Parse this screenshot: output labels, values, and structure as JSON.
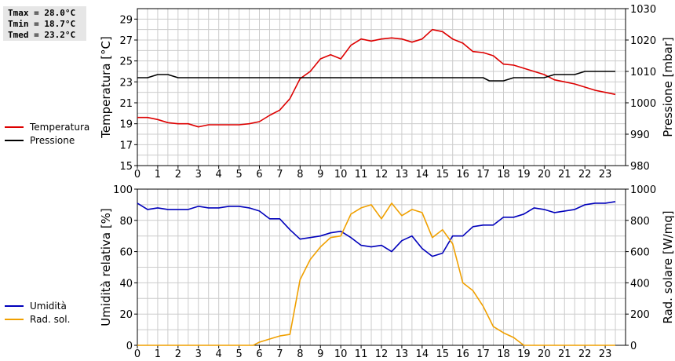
{
  "stats": {
    "tmax": "Tmax = 28.0°C",
    "tmin": "Tmin = 18.7°C",
    "tmed": "Tmed = 23.2°C"
  },
  "colors": {
    "temperature": "#dd0000",
    "pressure": "#000000",
    "humidity": "#0000bb",
    "radiation": "#f0a000",
    "grid": "#cccccc"
  },
  "legend_top": [
    {
      "label": "Temperatura",
      "color": "#dd0000"
    },
    {
      "label": "Pressione",
      "color": "#000000"
    }
  ],
  "legend_bottom": [
    {
      "label": "Umidità",
      "color": "#0000bb"
    },
    {
      "label": "Rad. sol.",
      "color": "#f0a000"
    }
  ],
  "chart_data": [
    {
      "type": "line",
      "ylabel": "Temperatura [°C]",
      "y2label": "Pressione [mbar]",
      "xlim": [
        0,
        24
      ],
      "ylim": [
        15,
        30
      ],
      "y2lim": [
        980,
        1030
      ],
      "xticks": [
        "0",
        "1",
        "2",
        "3",
        "4",
        "5",
        "6",
        "7",
        "8",
        "9",
        "10",
        "11",
        "12",
        "13",
        "14",
        "15",
        "16",
        "17",
        "18",
        "19",
        "20",
        "21",
        "22",
        "23"
      ],
      "yticks": [
        "15",
        "17",
        "19",
        "21",
        "23",
        "25",
        "27",
        "29"
      ],
      "y2ticks": [
        "980",
        "990",
        "1000",
        "1010",
        "1020",
        "1030"
      ],
      "grid": true,
      "series": [
        {
          "name": "Temperatura",
          "axis": "left",
          "color": "#dd0000",
          "x": [
            0,
            0.5,
            1,
            1.5,
            2,
            2.5,
            3,
            3.5,
            4,
            4.5,
            5,
            5.5,
            6,
            6.5,
            7,
            7.5,
            8,
            8.5,
            9,
            9.5,
            10,
            10.5,
            11,
            11.5,
            12,
            12.5,
            13,
            13.5,
            14,
            14.5,
            15,
            15.5,
            16,
            16.5,
            17,
            17.5,
            18,
            18.5,
            19,
            19.5,
            20,
            20.5,
            21,
            21.5,
            22,
            22.5,
            23,
            23.5
          ],
          "y": [
            19.6,
            19.6,
            19.4,
            19.1,
            19.0,
            19.0,
            18.7,
            18.9,
            18.9,
            18.9,
            18.9,
            19.0,
            19.2,
            19.8,
            20.3,
            21.4,
            23.3,
            24.0,
            25.2,
            25.6,
            25.2,
            26.5,
            27.1,
            26.9,
            27.1,
            27.2,
            27.1,
            26.8,
            27.1,
            28.0,
            27.8,
            27.1,
            26.7,
            25.9,
            25.8,
            25.5,
            24.7,
            24.6,
            24.3,
            24.0,
            23.7,
            23.2,
            23.0,
            22.8,
            22.5,
            22.2,
            22.0,
            21.8
          ]
        },
        {
          "name": "Pressione",
          "axis": "right",
          "color": "#000000",
          "x": [
            0,
            0.5,
            1,
            1.5,
            2,
            2.5,
            3,
            4,
            5,
            6,
            7,
            8,
            9,
            10,
            11,
            12,
            13,
            14,
            15,
            16,
            17,
            17.3,
            17.5,
            18,
            18.5,
            19,
            20,
            20.5,
            21,
            21.5,
            22,
            22.5,
            23,
            23.5
          ],
          "y": [
            1008,
            1008,
            1009,
            1009,
            1008,
            1008,
            1008,
            1008,
            1008,
            1008,
            1008,
            1008,
            1008,
            1008,
            1008,
            1008,
            1008,
            1008,
            1008,
            1008,
            1008,
            1007,
            1007,
            1007,
            1008,
            1008,
            1008,
            1009,
            1009,
            1009,
            1010,
            1010,
            1010,
            1010
          ]
        }
      ]
    },
    {
      "type": "line",
      "ylabel": "Umidità relativa [%]",
      "y2label": "Rad. solare [W/mq]",
      "xlim": [
        0,
        24
      ],
      "ylim": [
        0,
        100
      ],
      "y2lim": [
        0,
        1000
      ],
      "xticks": [
        "0",
        "1",
        "2",
        "3",
        "4",
        "5",
        "6",
        "7",
        "8",
        "9",
        "10",
        "11",
        "12",
        "13",
        "14",
        "15",
        "16",
        "17",
        "18",
        "19",
        "20",
        "21",
        "22",
        "23"
      ],
      "yticks": [
        "0",
        "20",
        "40",
        "60",
        "80",
        "100"
      ],
      "y2ticks": [
        "0",
        "200",
        "400",
        "600",
        "800",
        "1000"
      ],
      "grid": true,
      "series": [
        {
          "name": "Umidità",
          "axis": "left",
          "color": "#0000bb",
          "x": [
            0,
            0.5,
            1,
            1.5,
            2,
            2.5,
            3,
            3.5,
            4,
            4.5,
            5,
            5.5,
            6,
            6.5,
            7,
            7.5,
            8,
            8.5,
            9,
            9.5,
            10,
            10.5,
            11,
            11.5,
            12,
            12.5,
            13,
            13.5,
            14,
            14.5,
            15,
            15.5,
            16,
            16.5,
            17,
            17.5,
            18,
            18.5,
            19,
            19.5,
            20,
            20.5,
            21,
            21.5,
            22,
            22.5,
            23,
            23.5
          ],
          "y": [
            91,
            87,
            88,
            87,
            87,
            87,
            89,
            88,
            88,
            89,
            89,
            88,
            86,
            81,
            81,
            74,
            68,
            69,
            70,
            72,
            73,
            69,
            64,
            63,
            64,
            60,
            67,
            70,
            62,
            57,
            59,
            70,
            70,
            76,
            77,
            77,
            82,
            82,
            84,
            88,
            87,
            85,
            86,
            87,
            90,
            91,
            91,
            92
          ]
        },
        {
          "name": "Rad. sol.",
          "axis": "right",
          "color": "#f0a000",
          "x": [
            0,
            0.5,
            1,
            1.5,
            2,
            2.5,
            3,
            3.5,
            4,
            4.5,
            5,
            5.5,
            5.7,
            6,
            6.5,
            7,
            7.5,
            8,
            8.5,
            9,
            9.5,
            10,
            10.5,
            11,
            11.5,
            12,
            12.5,
            13,
            13.5,
            14,
            14.5,
            15,
            15.5,
            16,
            16.5,
            17,
            17.5,
            18,
            18.5,
            19,
            19.5,
            20,
            20.5,
            21,
            21.5,
            22,
            22.5,
            23,
            23.5
          ],
          "y": [
            0,
            0,
            0,
            0,
            0,
            0,
            0,
            0,
            0,
            0,
            0,
            0,
            0,
            20,
            40,
            60,
            70,
            420,
            550,
            630,
            690,
            700,
            840,
            880,
            900,
            810,
            910,
            830,
            870,
            850,
            690,
            740,
            650,
            400,
            350,
            250,
            120,
            80,
            50,
            0,
            0,
            0,
            0,
            0,
            0,
            0,
            0,
            0,
            0
          ]
        }
      ]
    }
  ]
}
